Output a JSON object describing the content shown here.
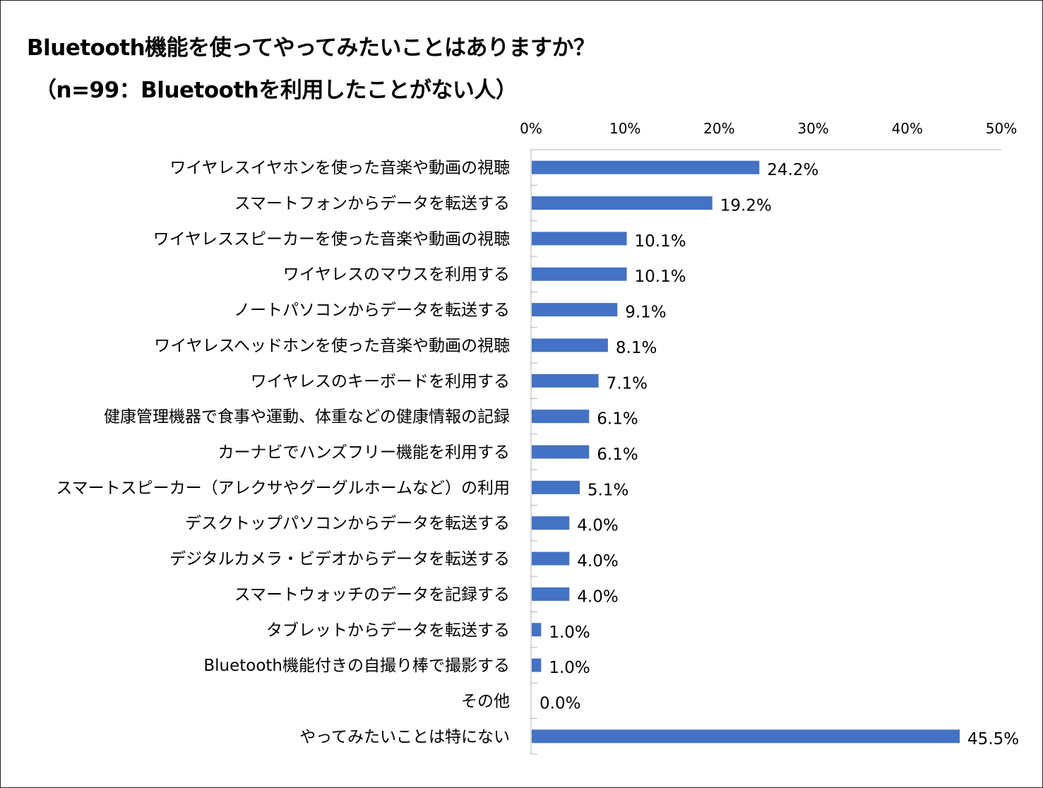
{
  "chart_data": {
    "type": "bar",
    "orientation": "horizontal",
    "title": "Bluetooth機能を使ってやってみたいことはありますか？",
    "subtitle": "（n=99：Bluetoothを利用したことがない人）",
    "x_ticks": [
      "0%",
      "10%",
      "20%",
      "30%",
      "40%",
      "50%"
    ],
    "xlim": [
      0,
      50
    ],
    "axis_position": "top",
    "grid": false,
    "bar_color": "#4472C4",
    "categories": [
      "ワイヤレスイヤホンを使った音楽や動画の視聴",
      "スマートフォンからデータを転送する",
      "ワイヤレススピーカーを使った音楽や動画の視聴",
      "ワイヤレスのマウスを利用する",
      "ノートパソコンからデータを転送する",
      "ワイヤレスヘッドホンを使った音楽や動画の視聴",
      "ワイヤレスのキーボードを利用する",
      "健康管理機器で食事や運動、体重などの健康情報の記録",
      "カーナビでハンズフリー機能を利用する",
      "スマートスピーカー（アレクサやグーグルホームなど）の利用",
      "デスクトップパソコンからデータを転送する",
      "デジタルカメラ・ビデオからデータを転送する",
      "スマートウォッチのデータを記録する",
      "タブレットからデータを転送する",
      "Bluetooth機能付きの自撮り棒で撮影する",
      "その他",
      "やってみたいことは特にない"
    ],
    "values": [
      24.2,
      19.2,
      10.1,
      10.1,
      9.1,
      8.1,
      7.1,
      6.1,
      6.1,
      5.1,
      4.0,
      4.0,
      4.0,
      1.0,
      1.0,
      0.0,
      45.5
    ],
    "value_labels": [
      "24.2%",
      "19.2%",
      "10.1%",
      "10.1%",
      "9.1%",
      "8.1%",
      "7.1%",
      "6.1%",
      "6.1%",
      "5.1%",
      "4.0%",
      "4.0%",
      "4.0%",
      "1.0%",
      "1.0%",
      "0.0%",
      "45.5%"
    ]
  }
}
